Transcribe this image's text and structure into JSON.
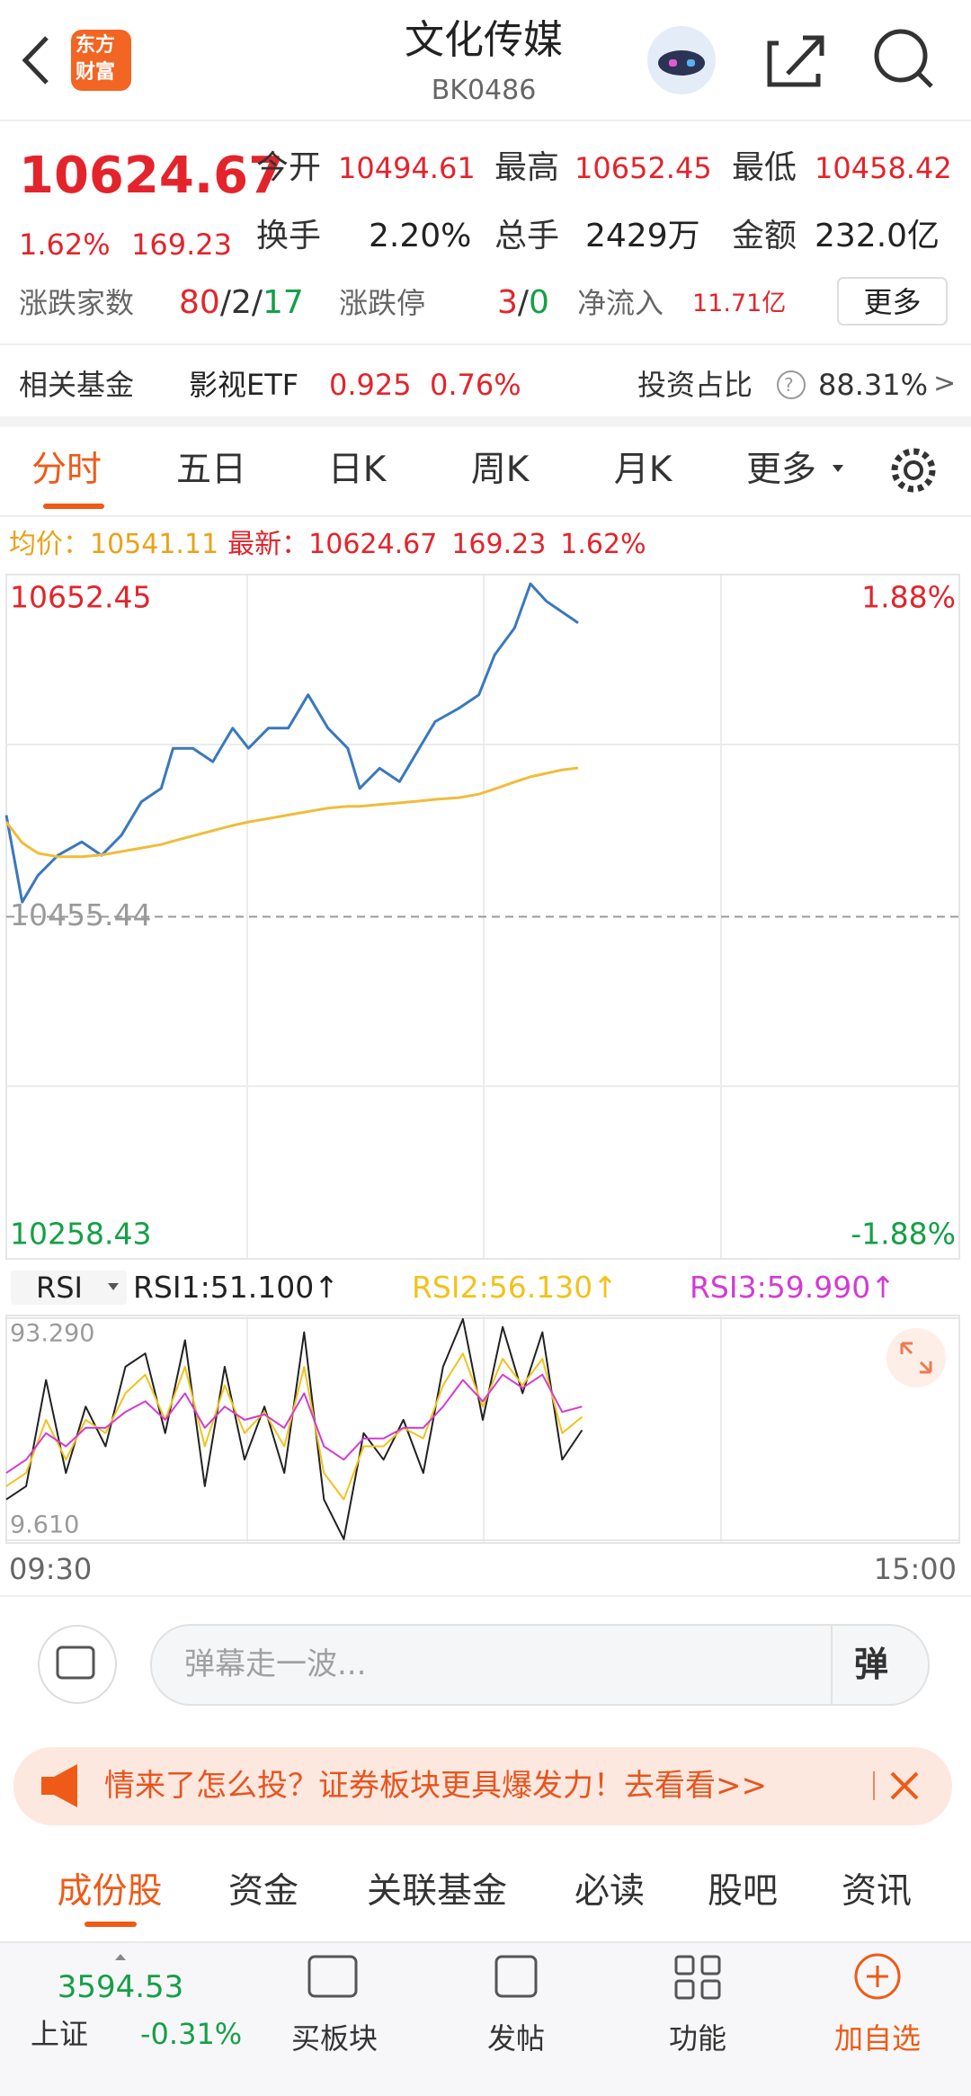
{
  "header": {
    "logo": [
      "东方",
      "财富"
    ],
    "title": "文化传媒",
    "code": "BK0486"
  },
  "quote": {
    "price": "10624.67",
    "change_pct": "1.62%",
    "change": "169.23",
    "stats": [
      {
        "label": "今开",
        "value": "10494.61"
      },
      {
        "label": "最高",
        "value": "10652.45"
      },
      {
        "label": "最低",
        "value": "10458.42"
      },
      {
        "label": "换手",
        "value": "2.20%"
      },
      {
        "label": "总手",
        "value": "2429万"
      },
      {
        "label": "金额",
        "value": "232.0亿"
      }
    ],
    "breadth": {
      "label": "涨跌家数",
      "up": "80",
      "sep1": "/",
      "flat": "2",
      "sep2": "/",
      "down": "17"
    },
    "limit": {
      "label": "涨跌停",
      "up": "3",
      "sep": "/",
      "down": "0"
    },
    "net_inflow": {
      "label": "净流入",
      "value": "11.71亿"
    },
    "more": "更多"
  },
  "fund": {
    "label": "相关基金",
    "name": "影视ETF",
    "price": "0.925",
    "change": "0.76%",
    "ratio_label": "投资占比",
    "help": "?",
    "ratio": "88.31%",
    "arrow": ">"
  },
  "tabs": [
    "分时",
    "五日",
    "日K",
    "周K",
    "月K",
    "更多"
  ],
  "info": {
    "avg_label": "均价：",
    "avg": "10541.11",
    "latest_label": "最新：",
    "latest": "10624.67",
    "change": "169.23",
    "change_pct": "1.62%"
  },
  "chart_data": [
    {
      "type": "line",
      "xlim": [
        0,
        240
      ],
      "ylim": [
        10258.43,
        10652.45
      ],
      "yticks": [
        10258.43,
        10455.44,
        10652.45
      ],
      "y2lim": [
        -1.88,
        1.88
      ],
      "y2ticks": [
        {
          "value": -1.88,
          "label": "-1.88%"
        },
        {
          "value": 1.88,
          "label": "1.88%"
        }
      ],
      "x": [
        0,
        4,
        8,
        13,
        19,
        24,
        29,
        34,
        39,
        42,
        47,
        52,
        57,
        61,
        66,
        71,
        76,
        81,
        86,
        89,
        94,
        99,
        104,
        108,
        114,
        119,
        123,
        128,
        132,
        136,
        140,
        144
      ],
      "series": [
        {
          "color": "#3a78bd",
          "values": [
            10513.9,
            10463.9,
            10479.3,
            10490.8,
            10498.5,
            10490.8,
            10502.4,
            10521.6,
            10529.3,
            10552.4,
            10552.4,
            10544.7,
            10564.0,
            10552.4,
            10564.0,
            10564.0,
            10583.2,
            10564.0,
            10552.4,
            10529.3,
            10540.9,
            10533.2,
            10552.4,
            10567.8,
            10575.5,
            10583.2,
            10606.3,
            10621.7,
            10647.1,
            10637.1,
            10630.9,
            10624.67
          ]
        },
        {
          "color": "#f0bd3a",
          "values": [
            10510,
            10498,
            10492,
            10490,
            10490,
            10491,
            10493,
            10495,
            10497,
            10499,
            10502,
            10505,
            10508,
            10510,
            10512,
            10514,
            10516,
            10518,
            10519,
            10519,
            10520,
            10521,
            10522,
            10523,
            10524,
            10526,
            10529,
            10533,
            10536,
            10538,
            10540,
            10541.11
          ]
        }
      ]
    },
    {
      "type": "line",
      "indicator": "RSI",
      "xlim": [
        0,
        240
      ],
      "xticks": [
        {
          "value": 0,
          "label": "09:30"
        },
        {
          "value": 240,
          "label": "15:00"
        }
      ],
      "ylim": [
        9.61,
        93.29
      ],
      "yticks": [
        {
          "value": 9.61,
          "label": "9.610"
        },
        {
          "value": 93.29,
          "label": "93.290"
        }
      ],
      "x": [
        0,
        5,
        10,
        15,
        20,
        25,
        30,
        35,
        40,
        45,
        50,
        55,
        60,
        65,
        70,
        75,
        80,
        85,
        90,
        95,
        100,
        105,
        110,
        115,
        120,
        125,
        130,
        135,
        140,
        145
      ],
      "series": [
        {
          "name": "RSI1:51.100↑",
          "color": "#222222",
          "values": [
            25,
            30,
            70,
            35,
            60,
            45,
            75,
            80,
            50,
            85,
            30,
            75,
            40,
            60,
            35,
            88,
            25,
            10,
            50,
            40,
            55,
            35,
            75,
            93,
            55,
            90,
            65,
            88,
            40,
            51.1
          ]
        },
        {
          "name": "RSI2:56.130↑",
          "color": "#f2c21b",
          "values": [
            30,
            35,
            55,
            40,
            55,
            50,
            65,
            72,
            55,
            75,
            45,
            68,
            50,
            58,
            45,
            75,
            35,
            25,
            45,
            45,
            52,
            48,
            68,
            80,
            60,
            78,
            68,
            78,
            50,
            56.13
          ]
        },
        {
          "name": "RSI3:59.990↑",
          "color": "#d23cd2",
          "values": [
            35,
            40,
            50,
            45,
            52,
            52,
            58,
            62,
            55,
            65,
            52,
            60,
            55,
            57,
            52,
            65,
            45,
            40,
            48,
            48,
            52,
            52,
            60,
            70,
            62,
            72,
            67,
            72,
            58,
            59.99
          ]
        }
      ]
    }
  ],
  "comment": {
    "placeholder": "弹幕走一波...",
    "button": "弹"
  },
  "banner": {
    "text": "情来了怎么投？证券板块更具爆发力！去看看>>"
  },
  "sub_tabs": [
    "成份股",
    "资金",
    "关联基金",
    "必读",
    "股吧",
    "资讯"
  ],
  "nav": {
    "index": {
      "value": "3594.53",
      "name": "上证",
      "change": "-0.31%"
    },
    "items": [
      "买板块",
      "发帖",
      "功能",
      "加自选"
    ]
  }
}
